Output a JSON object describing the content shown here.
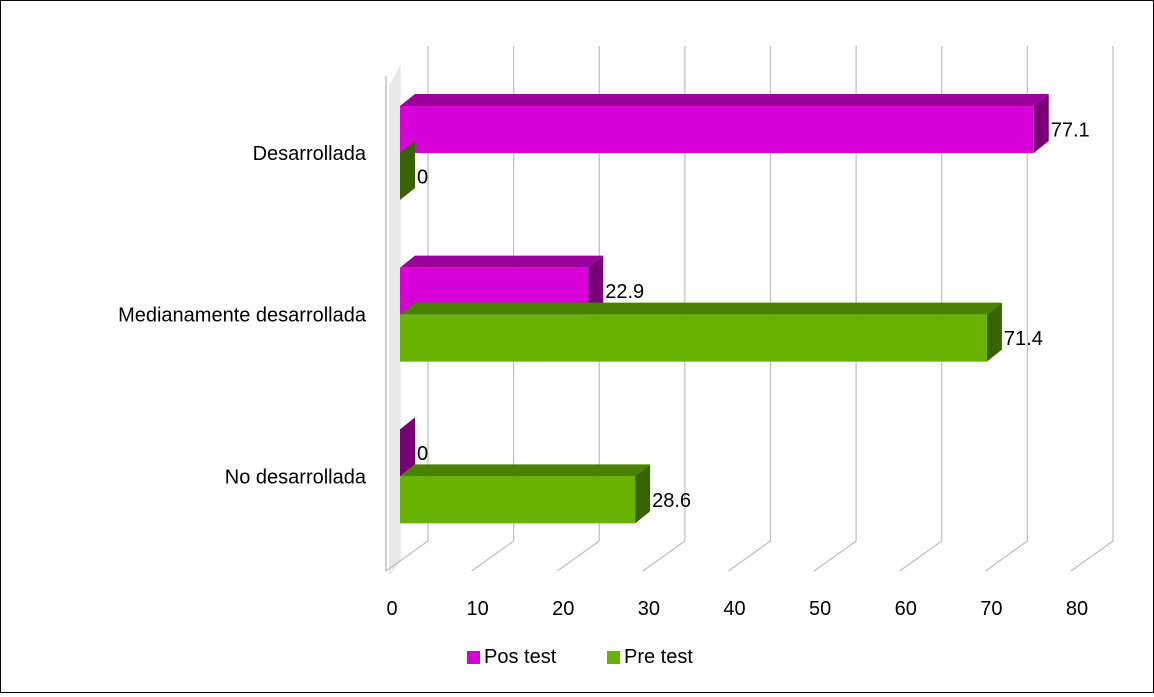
{
  "chart_data": {
    "type": "bar",
    "orientation": "horizontal",
    "style": "3d",
    "categories": [
      "Desarrollada",
      "Medianamente desarrollada",
      "No desarrollada"
    ],
    "series": [
      {
        "name": "Pos test",
        "values": [
          77.1,
          22.9,
          0
        ],
        "color": "#D800D8"
      },
      {
        "name": "Pre test",
        "values": [
          0,
          71.4,
          28.6
        ],
        "color": "#66B400"
      }
    ],
    "data_labels": [
      [
        "77.1",
        "22.9",
        "0"
      ],
      [
        "0",
        "71.4",
        "28.6"
      ]
    ],
    "xlim": [
      0,
      80
    ],
    "xticks": [
      0,
      10,
      20,
      30,
      40,
      50,
      60,
      70,
      80
    ],
    "grid": true,
    "legend_position": "bottom",
    "title": "",
    "xlabel": "",
    "ylabel": ""
  }
}
